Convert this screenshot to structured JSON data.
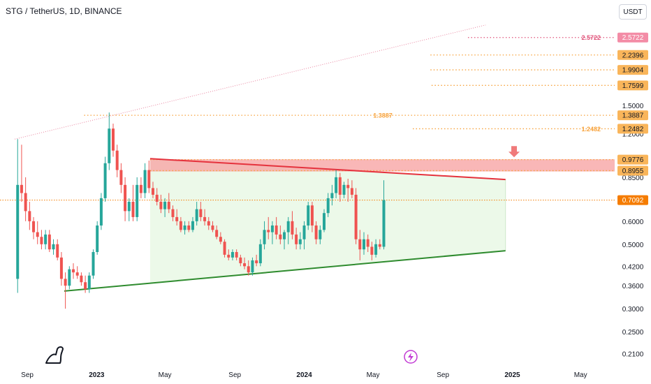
{
  "header": {
    "title": "STG / TetherUS, 1D, BINANCE",
    "currency_button": "USDT"
  },
  "colors": {
    "bull": "#26a69a",
    "bear": "#ef5350",
    "orange": "#f7a23b",
    "pink": "#e05279",
    "resistance": "#e5323d",
    "support": "#2e8b2e",
    "zone": "#f8a5a5",
    "fill": "#e6f7e2",
    "current": "#f57c00"
  },
  "icons": [
    "tradingview-dino-logo",
    "lightning-icon",
    "arrow-down-icon"
  ],
  "chart_data": {
    "type": "candlestick",
    "y_scale": "log",
    "ylim": [
      0.195,
      3.1
    ],
    "xlim": [
      "2022-07-15",
      "2025-06-30"
    ],
    "y_ticks": [
      "1.5000",
      "1.2000",
      "0.8500",
      "0.6000",
      "0.5000",
      "0.4200",
      "0.3600",
      "0.3000",
      "0.2500",
      "0.2100"
    ],
    "x_ticks": [
      {
        "date": "2022-09-01",
        "label": "Sep"
      },
      {
        "date": "2023-01-01",
        "label": "2023"
      },
      {
        "date": "2023-05-01",
        "label": "May"
      },
      {
        "date": "2023-09-01",
        "label": "Sep"
      },
      {
        "date": "2024-01-01",
        "label": "2024"
      },
      {
        "date": "2024-05-01",
        "label": "May"
      },
      {
        "date": "2024-09-01",
        "label": "Sep"
      },
      {
        "date": "2025-01-01",
        "label": "2025"
      },
      {
        "date": "2025-05-01",
        "label": "May"
      }
    ],
    "price_levels": [
      {
        "value": 2.5722,
        "label": "2.5722",
        "color": "pink",
        "from": "2024-10-15",
        "inline_label": "2.5722"
      },
      {
        "value": 2.2396,
        "label": "2.2396",
        "color": "orange",
        "from": "2024-08-10"
      },
      {
        "value": 1.9904,
        "label": "1.9904",
        "color": "orange",
        "from": "2024-08-10"
      },
      {
        "value": 1.7599,
        "label": "1.7599",
        "color": "orange",
        "from": "2024-08-12"
      },
      {
        "value": 1.3887,
        "label": "1.3887",
        "color": "orange",
        "from": "2022-12-10",
        "inline_label": "1.3887"
      },
      {
        "value": 1.2482,
        "label": "1.2482",
        "color": "orange",
        "from": "2024-07-10",
        "inline_label": "1.2482"
      },
      {
        "value": 0.9776,
        "label": "0.9776",
        "color": "orange",
        "from": "2023-04-05"
      },
      {
        "value": 0.8955,
        "label": "0.8955",
        "color": "orange",
        "from": "2023-04-05"
      }
    ],
    "current_price": {
      "value": 0.7092,
      "label": "0.7092"
    },
    "resistance_zone": {
      "from": "2023-04-05",
      "to": [
        0.89,
        0.98
      ]
    },
    "trend_lines": [
      {
        "name": "resistance",
        "from": [
          "2023-04-05",
          0.985
        ],
        "to": [
          "2024-12-20",
          0.835
        ],
        "color": "resistance"
      },
      {
        "name": "support",
        "from": [
          "2022-11-05",
          0.345
        ],
        "to": [
          "2024-12-20",
          0.475
        ],
        "color": "support"
      },
      {
        "name": "upper-channel",
        "from": [
          "2022-08-10",
          1.15
        ],
        "to": [
          "2024-11-15",
          2.84
        ],
        "color": "pink",
        "dotted": true
      }
    ],
    "candles": [
      [
        "2022-08-15",
        0.38,
        1.15,
        0.34,
        0.8
      ],
      [
        "2022-08-22",
        0.8,
        1.1,
        0.7,
        0.75
      ],
      [
        "2022-08-29",
        0.75,
        0.85,
        0.6,
        0.65
      ],
      [
        "2022-09-05",
        0.65,
        0.7,
        0.56,
        0.6
      ],
      [
        "2022-09-12",
        0.6,
        0.62,
        0.52,
        0.55
      ],
      [
        "2022-09-19",
        0.55,
        0.6,
        0.5,
        0.53
      ],
      [
        "2022-09-26",
        0.53,
        0.56,
        0.48,
        0.5
      ],
      [
        "2022-10-03",
        0.5,
        0.56,
        0.48,
        0.54
      ],
      [
        "2022-10-10",
        0.54,
        0.56,
        0.47,
        0.48
      ],
      [
        "2022-10-17",
        0.48,
        0.52,
        0.46,
        0.5
      ],
      [
        "2022-10-24",
        0.5,
        0.52,
        0.44,
        0.45
      ],
      [
        "2022-10-31",
        0.45,
        0.47,
        0.36,
        0.38
      ],
      [
        "2022-11-07",
        0.38,
        0.4,
        0.3,
        0.36
      ],
      [
        "2022-11-14",
        0.36,
        0.42,
        0.35,
        0.41
      ],
      [
        "2022-11-21",
        0.41,
        0.43,
        0.38,
        0.4
      ],
      [
        "2022-11-28",
        0.4,
        0.42,
        0.38,
        0.39
      ],
      [
        "2022-12-05",
        0.39,
        0.4,
        0.36,
        0.37
      ],
      [
        "2022-12-12",
        0.37,
        0.39,
        0.34,
        0.35
      ],
      [
        "2022-12-19",
        0.35,
        0.4,
        0.34,
        0.39
      ],
      [
        "2022-12-26",
        0.39,
        0.48,
        0.38,
        0.47
      ],
      [
        "2023-01-02",
        0.47,
        0.6,
        0.46,
        0.58
      ],
      [
        "2023-01-09",
        0.58,
        0.75,
        0.56,
        0.72
      ],
      [
        "2023-01-16",
        0.72,
        1.0,
        0.7,
        0.95
      ],
      [
        "2023-01-23",
        0.95,
        1.42,
        0.9,
        1.25
      ],
      [
        "2023-01-30",
        1.25,
        1.3,
        1.0,
        1.05
      ],
      [
        "2023-02-06",
        1.05,
        1.1,
        0.85,
        0.9
      ],
      [
        "2023-02-13",
        0.9,
        0.95,
        0.75,
        0.8
      ],
      [
        "2023-02-20",
        0.8,
        0.85,
        0.6,
        0.65
      ],
      [
        "2023-02-27",
        0.65,
        0.72,
        0.6,
        0.7
      ],
      [
        "2023-03-06",
        0.7,
        0.8,
        0.6,
        0.62
      ],
      [
        "2023-03-13",
        0.62,
        0.85,
        0.6,
        0.8
      ],
      [
        "2023-03-20",
        0.8,
        0.85,
        0.72,
        0.75
      ],
      [
        "2023-03-27",
        0.75,
        0.95,
        0.72,
        0.9
      ],
      [
        "2023-04-03",
        0.9,
        0.97,
        0.75,
        0.78
      ],
      [
        "2023-04-10",
        0.78,
        0.82,
        0.72,
        0.74
      ],
      [
        "2023-04-17",
        0.74,
        0.78,
        0.68,
        0.7
      ],
      [
        "2023-04-24",
        0.7,
        0.74,
        0.64,
        0.66
      ],
      [
        "2023-05-01",
        0.66,
        0.72,
        0.62,
        0.7
      ],
      [
        "2023-05-08",
        0.7,
        0.75,
        0.64,
        0.66
      ],
      [
        "2023-05-15",
        0.66,
        0.68,
        0.6,
        0.62
      ],
      [
        "2023-05-22",
        0.62,
        0.66,
        0.58,
        0.6
      ],
      [
        "2023-05-29",
        0.6,
        0.62,
        0.55,
        0.56
      ],
      [
        "2023-06-05",
        0.56,
        0.6,
        0.54,
        0.58
      ],
      [
        "2023-06-12",
        0.58,
        0.6,
        0.55,
        0.56
      ],
      [
        "2023-06-19",
        0.56,
        0.62,
        0.55,
        0.6
      ],
      [
        "2023-06-26",
        0.6,
        0.7,
        0.58,
        0.66
      ],
      [
        "2023-07-03",
        0.66,
        0.7,
        0.6,
        0.62
      ],
      [
        "2023-07-10",
        0.62,
        0.66,
        0.58,
        0.6
      ],
      [
        "2023-07-17",
        0.6,
        0.62,
        0.56,
        0.58
      ],
      [
        "2023-07-24",
        0.58,
        0.6,
        0.55,
        0.56
      ],
      [
        "2023-07-31",
        0.56,
        0.58,
        0.52,
        0.53
      ],
      [
        "2023-08-07",
        0.53,
        0.55,
        0.5,
        0.51
      ],
      [
        "2023-08-14",
        0.51,
        0.52,
        0.45,
        0.46
      ],
      [
        "2023-08-21",
        0.46,
        0.48,
        0.44,
        0.45
      ],
      [
        "2023-08-28",
        0.45,
        0.48,
        0.44,
        0.47
      ],
      [
        "2023-09-04",
        0.47,
        0.48,
        0.44,
        0.45
      ],
      [
        "2023-09-11",
        0.45,
        0.46,
        0.42,
        0.43
      ],
      [
        "2023-09-18",
        0.43,
        0.45,
        0.41,
        0.42
      ],
      [
        "2023-09-25",
        0.42,
        0.44,
        0.39,
        0.4
      ],
      [
        "2023-10-02",
        0.4,
        0.45,
        0.39,
        0.44
      ],
      [
        "2023-10-09",
        0.44,
        0.46,
        0.42,
        0.43
      ],
      [
        "2023-10-16",
        0.43,
        0.52,
        0.42,
        0.5
      ],
      [
        "2023-10-23",
        0.5,
        0.6,
        0.48,
        0.56
      ],
      [
        "2023-10-30",
        0.56,
        0.62,
        0.52,
        0.55
      ],
      [
        "2023-11-06",
        0.55,
        0.6,
        0.5,
        0.58
      ],
      [
        "2023-11-13",
        0.58,
        0.62,
        0.52,
        0.54
      ],
      [
        "2023-11-20",
        0.54,
        0.58,
        0.5,
        0.52
      ],
      [
        "2023-11-27",
        0.52,
        0.56,
        0.48,
        0.55
      ],
      [
        "2023-12-04",
        0.55,
        0.62,
        0.5,
        0.6
      ],
      [
        "2023-12-11",
        0.6,
        0.65,
        0.52,
        0.54
      ],
      [
        "2023-12-18",
        0.54,
        0.57,
        0.48,
        0.5
      ],
      [
        "2023-12-25",
        0.5,
        0.55,
        0.48,
        0.52
      ],
      [
        "2024-01-01",
        0.52,
        0.6,
        0.48,
        0.58
      ],
      [
        "2024-01-08",
        0.58,
        0.7,
        0.56,
        0.68
      ],
      [
        "2024-01-15",
        0.68,
        0.7,
        0.55,
        0.58
      ],
      [
        "2024-01-22",
        0.58,
        0.6,
        0.5,
        0.52
      ],
      [
        "2024-01-29",
        0.52,
        0.58,
        0.5,
        0.56
      ],
      [
        "2024-02-05",
        0.56,
        0.66,
        0.55,
        0.64
      ],
      [
        "2024-02-12",
        0.64,
        0.75,
        0.62,
        0.72
      ],
      [
        "2024-02-19",
        0.72,
        0.8,
        0.68,
        0.75
      ],
      [
        "2024-02-26",
        0.75,
        0.9,
        0.72,
        0.85
      ],
      [
        "2024-03-04",
        0.85,
        0.88,
        0.7,
        0.74
      ],
      [
        "2024-03-11",
        0.74,
        0.82,
        0.72,
        0.8
      ],
      [
        "2024-03-18",
        0.8,
        0.84,
        0.7,
        0.78
      ],
      [
        "2024-03-25",
        0.78,
        0.83,
        0.72,
        0.74
      ],
      [
        "2024-04-01",
        0.74,
        0.78,
        0.5,
        0.52
      ],
      [
        "2024-04-08",
        0.52,
        0.56,
        0.44,
        0.48
      ],
      [
        "2024-04-15",
        0.48,
        0.55,
        0.46,
        0.52
      ],
      [
        "2024-04-22",
        0.52,
        0.54,
        0.47,
        0.49
      ],
      [
        "2024-04-29",
        0.49,
        0.51,
        0.44,
        0.46
      ],
      [
        "2024-05-06",
        0.46,
        0.52,
        0.45,
        0.5
      ],
      [
        "2024-05-13",
        0.5,
        0.52,
        0.48,
        0.49
      ],
      [
        "2024-05-20",
        0.49,
        0.83,
        0.48,
        0.7092
      ]
    ]
  }
}
